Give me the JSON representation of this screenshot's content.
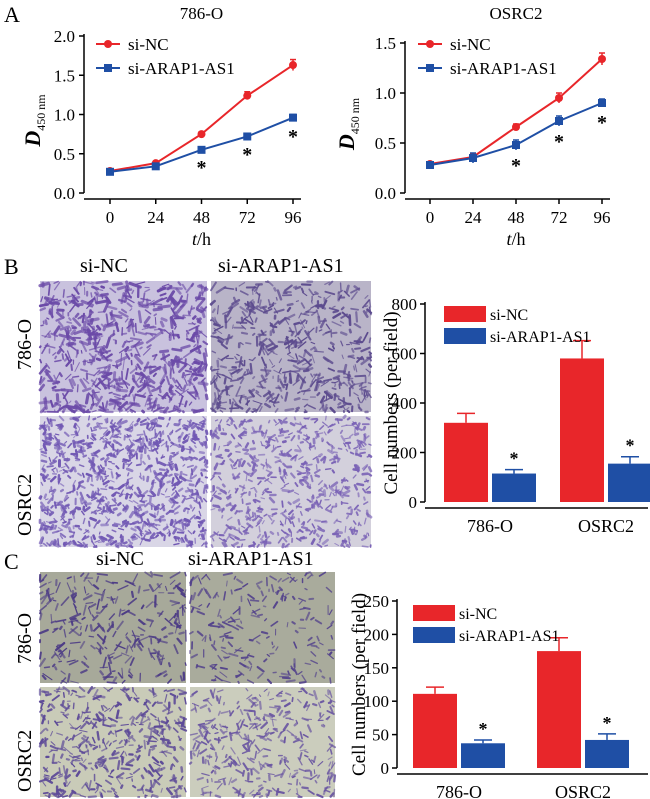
{
  "panels": {
    "a": "A",
    "b": "B",
    "c": "C"
  },
  "chart_data": [
    {
      "type": "line",
      "title": "786-O",
      "xlabel_main": "t",
      "xlabel_unit": "/h",
      "ylabel_main": "D",
      "ylabel_sub": "450 nm",
      "x": [
        0,
        24,
        48,
        72,
        96
      ],
      "xticks": [
        "0",
        "24",
        "48",
        "72",
        "96"
      ],
      "ylim": [
        0,
        2.0
      ],
      "yticks": [
        "0.0",
        "0.5",
        "1.0",
        "1.5",
        "2.0"
      ],
      "series": [
        {
          "name": "si-NC",
          "color": "#e8262a",
          "marker": "circle",
          "values": [
            0.28,
            0.38,
            0.75,
            1.24,
            1.63
          ],
          "errors": [
            0.02,
            0.02,
            0.03,
            0.05,
            0.07
          ]
        },
        {
          "name": "si-ARAP1-AS1",
          "color": "#1f4fa5",
          "marker": "square",
          "values": [
            0.27,
            0.34,
            0.55,
            0.72,
            0.96
          ],
          "errors": [
            0.02,
            0.02,
            0.03,
            0.03,
            0.04
          ]
        }
      ],
      "significance": [
        "",
        "",
        "*",
        "*",
        "*"
      ]
    },
    {
      "type": "line",
      "title": "OSRC2",
      "xlabel_main": "t",
      "xlabel_unit": "/h",
      "ylabel_main": "D",
      "ylabel_sub": "450 nm",
      "x": [
        0,
        24,
        48,
        72,
        96
      ],
      "xticks": [
        "0",
        "24",
        "48",
        "72",
        "96"
      ],
      "ylim": [
        0,
        1.5
      ],
      "yticks": [
        "0.0",
        "0.5",
        "1.0",
        "1.5"
      ],
      "series": [
        {
          "name": "si-NC",
          "color": "#e8262a",
          "marker": "circle",
          "values": [
            0.29,
            0.36,
            0.66,
            0.95,
            1.34
          ],
          "errors": [
            0.02,
            0.03,
            0.03,
            0.05,
            0.06
          ]
        },
        {
          "name": "si-ARAP1-AS1",
          "color": "#1f4fa5",
          "marker": "square",
          "values": [
            0.28,
            0.35,
            0.48,
            0.72,
            0.9
          ],
          "errors": [
            0.02,
            0.05,
            0.05,
            0.05,
            0.04
          ]
        }
      ],
      "significance": [
        "",
        "",
        "*",
        "*",
        "*"
      ]
    },
    {
      "type": "bar",
      "ylabel": "Cell numbers (per field)",
      "categories": [
        "786-O",
        "OSRC2"
      ],
      "ylim": [
        0,
        800
      ],
      "yticks": [
        "0",
        "200",
        "400",
        "600",
        "800"
      ],
      "series": [
        {
          "name": "si-NC",
          "color": "#e8262a",
          "values": [
            320,
            580
          ],
          "errors": [
            38,
            72
          ]
        },
        {
          "name": "si-ARAP1-AS1",
          "color": "#1f4fa5",
          "values": [
            115,
            155
          ],
          "errors": [
            16,
            28
          ]
        }
      ],
      "significance": [
        "*",
        "*"
      ]
    },
    {
      "type": "bar",
      "ylabel": "Cell numbers (per field)",
      "categories": [
        "786-O",
        "OSRC2"
      ],
      "ylim": [
        0,
        250
      ],
      "yticks": [
        "0",
        "50",
        "100",
        "150",
        "200",
        "250"
      ],
      "series": [
        {
          "name": "si-NC",
          "color": "#e8262a",
          "values": [
            111,
            175
          ],
          "errors": [
            10,
            20
          ]
        },
        {
          "name": "si-ARAP1-AS1",
          "color": "#1f4fa5",
          "values": [
            37,
            42
          ],
          "errors": [
            5,
            9
          ]
        }
      ],
      "significance": [
        "*",
        "*"
      ]
    }
  ],
  "micrographs": {
    "b": {
      "col1": "si-NC",
      "col2": "si-ARAP1-AS1",
      "row1": "786-O",
      "row2": "OSRC2"
    },
    "c": {
      "col1": "si-NC",
      "col2": "si-ARAP1-AS1",
      "row1": "786-O",
      "row2": "OSRC2"
    }
  },
  "colors": {
    "stain_dense": "#6b4aa8",
    "stain_bg": "#d9d6e6",
    "stain_sparse_bg": "#c9cbb8"
  }
}
